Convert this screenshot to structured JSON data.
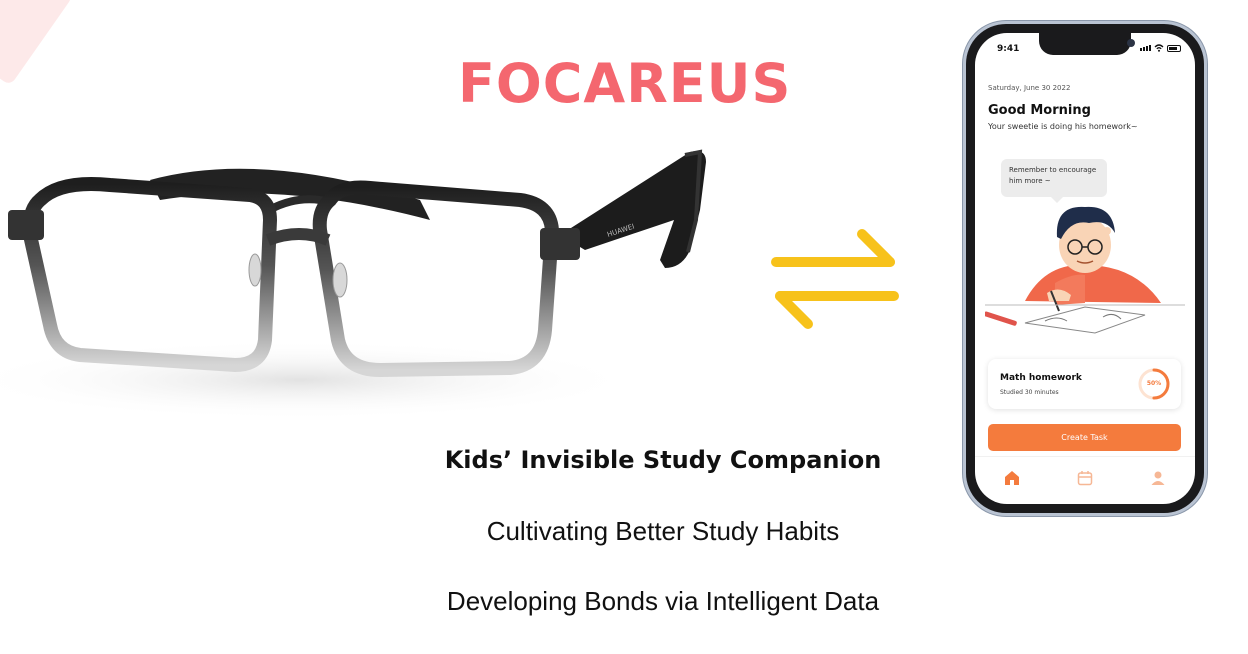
{
  "brand": {
    "name": "FOCAREUS",
    "color": "#f4676f"
  },
  "glasses": {
    "arm_label": "HUAWEI"
  },
  "tagline": {
    "headline": "Kids’ Invisible Study Companion",
    "line2": "Cultivating Better Study Habits",
    "line3": "Developing Bonds via Intelligent Data"
  },
  "sync_icon": {
    "name": "swap-arrows-icon",
    "color": "#f7c21b"
  },
  "phone": {
    "status": {
      "time": "9:41"
    },
    "date": "Saturday, June 30 2022",
    "greeting": "Good Morning",
    "subtitle": "Your sweetie is doing his homework~",
    "bubble": "Remember to encourage him more ~",
    "task": {
      "title": "Math homework",
      "subtitle": "Studied 30 minutes",
      "progress_label": "50%",
      "progress": 0.5
    },
    "create_button": "Create Task",
    "accent": "#f47b3d",
    "tabs": [
      "home-icon",
      "calendar-icon",
      "profile-icon"
    ]
  }
}
